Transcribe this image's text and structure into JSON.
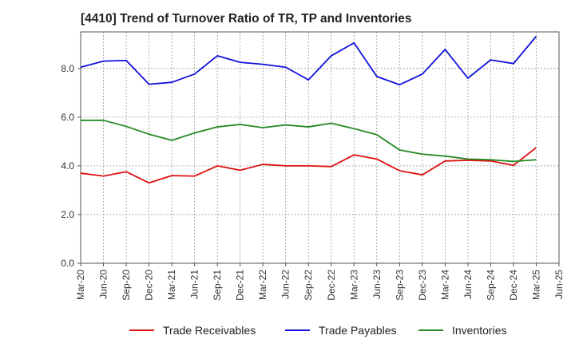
{
  "chart_data": {
    "type": "line",
    "title": "[4410]  Trend of Turnover Ratio of TR, TP and Inventories",
    "xlabel": "",
    "ylabel": "",
    "x": [
      "Mar-20",
      "Jun-20",
      "Sep-20",
      "Dec-20",
      "Mar-21",
      "Jun-21",
      "Sep-21",
      "Dec-21",
      "Mar-22",
      "Jun-22",
      "Sep-22",
      "Dec-22",
      "Mar-23",
      "Jun-23",
      "Sep-23",
      "Dec-23",
      "Mar-24",
      "Jun-24",
      "Sep-24",
      "Dec-24",
      "Mar-25",
      "Jun-25"
    ],
    "ylim": [
      0,
      9.5
    ],
    "yticks": [
      "0.0",
      "2.0",
      "4.0",
      "6.0",
      "8.0"
    ],
    "grid": true,
    "legend_position": "bottom",
    "series": [
      {
        "name": "Trade Receivables",
        "color": "#dd1111",
        "values": [
          3.7,
          3.58,
          3.76,
          3.3,
          3.6,
          3.58,
          4.0,
          3.82,
          4.06,
          4.0,
          4.0,
          3.97,
          4.45,
          4.28,
          3.8,
          3.63,
          4.2,
          4.23,
          4.2,
          4.02,
          4.75,
          null
        ]
      },
      {
        "name": "Trade Payables",
        "color": "#1111dd",
        "values": [
          8.05,
          8.3,
          8.33,
          7.35,
          7.43,
          7.77,
          8.52,
          8.25,
          8.17,
          8.05,
          7.53,
          8.52,
          9.05,
          7.67,
          7.33,
          7.77,
          8.78,
          7.6,
          8.35,
          8.2,
          9.32,
          null
        ]
      },
      {
        "name": "Inventories",
        "color": "#228822",
        "values": [
          5.87,
          5.87,
          5.62,
          5.3,
          5.05,
          5.35,
          5.6,
          5.7,
          5.57,
          5.68,
          5.6,
          5.75,
          5.53,
          5.28,
          4.65,
          4.48,
          4.4,
          4.28,
          4.25,
          4.18,
          4.25,
          null
        ]
      }
    ]
  }
}
